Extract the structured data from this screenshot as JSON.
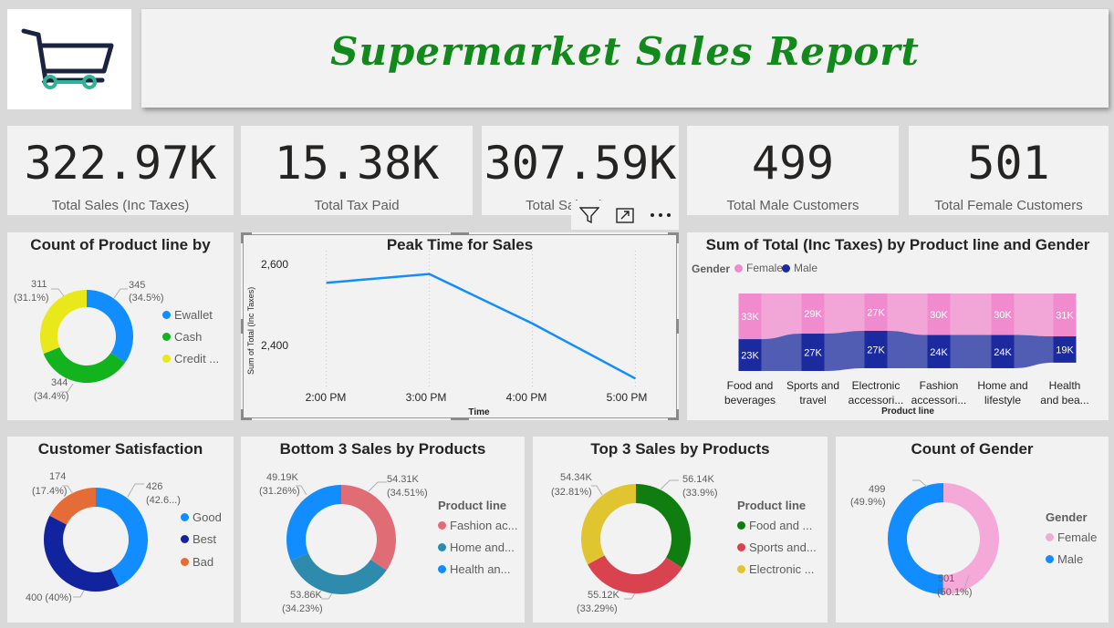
{
  "header": {
    "title": "Supermarket Sales Report"
  },
  "logo": {
    "icon": "shopping-cart-icon",
    "colors": {
      "cart": "#1a2340",
      "wheels": "#2fb396"
    }
  },
  "kpis": [
    {
      "value": "322.97K",
      "label": "Total Sales (Inc Taxes)"
    },
    {
      "value": "15.38K",
      "label": "Total Tax Paid"
    },
    {
      "value": "307.59K",
      "label": "Total Sales (Ex Ta"
    },
    {
      "value": "499",
      "label": "Total Male Customers"
    },
    {
      "value": "501",
      "label": "Total Female Customers"
    }
  ],
  "toolbar": {
    "icons": [
      "filter-icon",
      "focus-mode-icon",
      "more-options-icon"
    ]
  },
  "charts": {
    "payment": {
      "title": "Count of Product line by",
      "legend": [
        {
          "label": "Ewallet",
          "color": "#118dff"
        },
        {
          "label": "Cash",
          "color": "#12b31d"
        },
        {
          "label": "Credit ...",
          "color": "#e8e81a"
        }
      ],
      "labels": {
        "ewallet_value": "345",
        "ewallet_pct": "(34.5%)",
        "cash_value": "344",
        "cash_pct": "(34.4%)",
        "credit_value": "311",
        "credit_pct": "(31.1%)"
      }
    },
    "peak": {
      "title": "Peak Time for Sales",
      "ylabel": "Sum of Total (Inc Taxes)",
      "xlabel": "Time",
      "yticks": [
        "2,600",
        "2,400"
      ],
      "xticks": [
        "2:00 PM",
        "3:00 PM",
        "4:00 PM",
        "5:00 PM"
      ]
    },
    "ribbon": {
      "title": "Sum of Total (Inc Taxes) by Product line and Gender",
      "legend_title": "Gender",
      "legend": [
        {
          "label": "Female",
          "color": "#f08ccd"
        },
        {
          "label": "Male",
          "color": "#1b2a9e"
        }
      ],
      "xlabel": "Product line",
      "categories": [
        {
          "line1": "Food and",
          "line2": "beverages"
        },
        {
          "line1": "Sports and",
          "line2": "travel"
        },
        {
          "line1": "Electronic",
          "line2": "accessori..."
        },
        {
          "line1": "Fashion",
          "line2": "accessori..."
        },
        {
          "line1": "Home and",
          "line2": "lifestyle"
        },
        {
          "line1": "Health",
          "line2": "and bea..."
        }
      ],
      "top_labels": [
        "33K",
        "29K",
        "27K",
        "30K",
        "30K",
        "31K"
      ],
      "bottom_labels": [
        "23K",
        "27K",
        "27K",
        "24K",
        "24K",
        "19K"
      ]
    },
    "satisfaction": {
      "title": "Customer Satisfaction",
      "legend": [
        {
          "label": "Good",
          "color": "#118dff"
        },
        {
          "label": "Best",
          "color": "#12239e"
        },
        {
          "label": "Bad",
          "color": "#e66c37"
        }
      ],
      "labels": {
        "good_value": "426",
        "good_pct": "(42.6...)",
        "best_label": "400 (40%)",
        "bad_value": "174",
        "bad_pct": "(17.4%)"
      }
    },
    "bottom3": {
      "title": "Bottom 3 Sales by Products",
      "legend_title": "Product line",
      "legend": [
        {
          "label": "Fashion ac...",
          "color": "#e06c75"
        },
        {
          "label": "Home and...",
          "color": "#2e8bad"
        },
        {
          "label": "Health an...",
          "color": "#118dff"
        }
      ],
      "labels": {
        "fashion_value": "54.31K",
        "fashion_pct": "(34.51%)",
        "home_value": "53.86K",
        "home_pct": "(34.23%)",
        "health_value": "49.19K",
        "health_pct": "(31.26%)"
      }
    },
    "top3": {
      "title": "Top 3 Sales by Products",
      "legend_title": "Product line",
      "legend": [
        {
          "label": "Food and ...",
          "color": "#0f7d10"
        },
        {
          "label": "Sports and...",
          "color": "#d9434f"
        },
        {
          "label": "Electronic ...",
          "color": "#e0c531"
        }
      ],
      "labels": {
        "food_value": "56.14K",
        "food_pct": "(33.9%)",
        "sports_value": "55.12K",
        "sports_pct": "(33.29%)",
        "electronic_value": "54.34K",
        "electronic_pct": "(32.81%)"
      }
    },
    "gender": {
      "title": "Count of Gender",
      "legend_title": "Gender",
      "legend": [
        {
          "label": "Female",
          "color": "#f5a9d9"
        },
        {
          "label": "Male",
          "color": "#118dff"
        }
      ],
      "labels": {
        "male_value": "499",
        "male_pct": "(49.9%)",
        "female_value": "501",
        "female_pct": "(50.1%)"
      }
    }
  },
  "chart_data": [
    {
      "type": "pie",
      "title": "Count of Product line by",
      "categories": [
        "Ewallet",
        "Cash",
        "Credit ..."
      ],
      "values": [
        345,
        344,
        311
      ]
    },
    {
      "type": "line",
      "title": "Peak Time for Sales",
      "xlabel": "Time",
      "ylabel": "Sum of Total (Inc Taxes)",
      "x": [
        "2:00 PM",
        "3:00 PM",
        "4:00 PM",
        "5:00 PM"
      ],
      "series": [
        {
          "values": [
            2540,
            2562,
            2439,
            2302
          ]
        }
      ],
      "xlim": [
        "1:40 PM",
        "5:20 PM"
      ],
      "ylim": [
        2280,
        2620
      ]
    },
    {
      "type": "bar",
      "title": "Sum of Total (Inc Taxes) by Product line and Gender",
      "xlabel": "Product line",
      "categories": [
        "Food and beverages",
        "Sports and travel",
        "Electronic accessori...",
        "Fashion accessori...",
        "Home and lifestyle",
        "Health and bea..."
      ],
      "series": [
        {
          "name": "Female",
          "values": [
            33000,
            29000,
            27000,
            30000,
            30000,
            31000
          ]
        },
        {
          "name": "Male",
          "values": [
            23000,
            27000,
            27000,
            24000,
            24000,
            19000
          ]
        }
      ]
    },
    {
      "type": "pie",
      "title": "Customer Satisfaction",
      "categories": [
        "Good",
        "Best",
        "Bad"
      ],
      "values": [
        426,
        400,
        174
      ]
    },
    {
      "type": "pie",
      "title": "Bottom 3 Sales by Products",
      "categories": [
        "Fashion ac...",
        "Home and...",
        "Health an..."
      ],
      "values": [
        54310,
        53860,
        49190
      ]
    },
    {
      "type": "pie",
      "title": "Top 3 Sales by Products",
      "categories": [
        "Food and ...",
        "Sports and...",
        "Electronic ..."
      ],
      "values": [
        56140,
        55120,
        54340
      ]
    },
    {
      "type": "pie",
      "title": "Count of Gender",
      "categories": [
        "Female",
        "Male"
      ],
      "values": [
        501,
        499
      ]
    }
  ]
}
